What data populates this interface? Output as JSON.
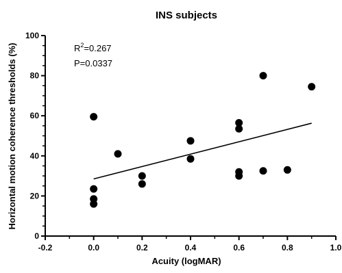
{
  "chart_data": {
    "type": "scatter",
    "title": "INS subjects",
    "xlabel": "Acuity (logMAR)",
    "ylabel": "Horizontal motion coherence thresholds (%)",
    "xlim": [
      -0.2,
      1.0
    ],
    "ylim": [
      0,
      100
    ],
    "x_ticks": [
      "-0.2",
      "0.0",
      "0.2",
      "0.4",
      "0.6",
      "0.8",
      "1.0"
    ],
    "y_ticks": [
      "0",
      "20",
      "40",
      "60",
      "80",
      "100"
    ],
    "x_tick_values": [
      -0.2,
      0.0,
      0.2,
      0.4,
      0.6,
      0.8,
      1.0
    ],
    "y_tick_values": [
      0,
      20,
      40,
      60,
      80,
      100
    ],
    "grid": false,
    "annotation": {
      "r2_prefix": "R",
      "r2_sup": "2",
      "r2_value": "=0.267",
      "p_text": "P=0.0337"
    },
    "points": [
      {
        "x": 0.0,
        "y": 59.5
      },
      {
        "x": 0.0,
        "y": 23.5
      },
      {
        "x": 0.0,
        "y": 18.5
      },
      {
        "x": 0.0,
        "y": 16.0
      },
      {
        "x": 0.1,
        "y": 41.0
      },
      {
        "x": 0.2,
        "y": 30.0
      },
      {
        "x": 0.2,
        "y": 26.0
      },
      {
        "x": 0.4,
        "y": 47.5
      },
      {
        "x": 0.4,
        "y": 38.5
      },
      {
        "x": 0.6,
        "y": 56.5
      },
      {
        "x": 0.6,
        "y": 53.5
      },
      {
        "x": 0.6,
        "y": 32.0
      },
      {
        "x": 0.6,
        "y": 30.0
      },
      {
        "x": 0.7,
        "y": 80.0
      },
      {
        "x": 0.7,
        "y": 32.5
      },
      {
        "x": 0.8,
        "y": 33.0
      },
      {
        "x": 0.9,
        "y": 74.5
      }
    ],
    "fit_line": {
      "x": [
        0.0,
        0.9
      ],
      "y": [
        28.5,
        56.3
      ]
    },
    "colors": {
      "marker": "#000000",
      "line": "#000000"
    }
  }
}
